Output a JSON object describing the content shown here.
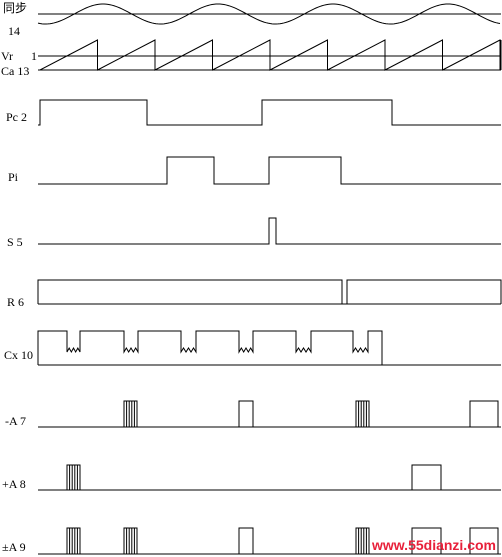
{
  "labels": {
    "sync": "同步",
    "sync_pin": "14",
    "vr": "Vr",
    "vr_pin": "1",
    "ca": "Ca 13",
    "pc": "Pc 2",
    "pi": "Pi",
    "s": "S 5",
    "r": "R 6",
    "cx": "Cx 10",
    "minus_a": "-A 7",
    "plus_a": "+A 8",
    "pm_a": "±A 9"
  },
  "watermark": "www.55dianzi.com",
  "colors": {
    "line": "#000000",
    "watermark": "#e8203a"
  }
}
